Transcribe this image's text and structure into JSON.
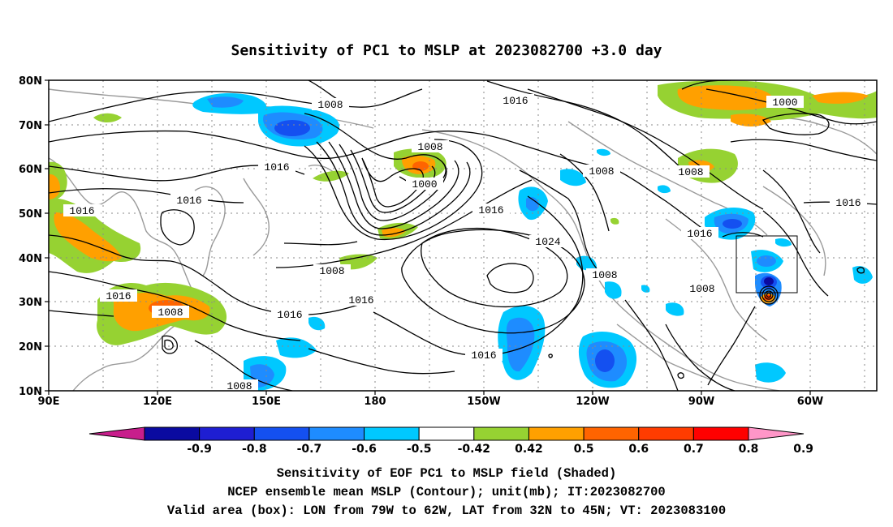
{
  "title": "Sensitivity of PC1 to MSLP at 2023082700 +3.0 day",
  "lat_ticks": [
    "80N",
    "70N",
    "60N",
    "50N",
    "40N",
    "30N",
    "20N",
    "10N"
  ],
  "lon_ticks": [
    "90E",
    "120E",
    "150E",
    "180",
    "150W",
    "120W",
    "90W",
    "60W"
  ],
  "contour_labels": [
    "1008",
    "1016",
    "1000",
    "1008",
    "1016",
    "1008",
    "1016",
    "1008",
    "1016",
    "1016",
    "1016",
    "1000",
    "1024",
    "1016",
    "1016",
    "1008",
    "1008",
    "1016",
    "1016",
    "1008",
    "1008"
  ],
  "colorbar": {
    "labels": [
      "-0.9",
      "-0.8",
      "-0.7",
      "-0.6",
      "-0.5",
      "-0.42",
      "0.42",
      "0.5",
      "0.6",
      "0.7",
      "0.8",
      "0.9"
    ],
    "colors": [
      "#c81e8c",
      "#0a0aa0",
      "#1e1ed2",
      "#1450f0",
      "#1e8cff",
      "#00c8ff",
      "#ffffff",
      "#96d232",
      "#ffa000",
      "#ff6400",
      "#ff3c00",
      "#ff0000",
      "#ff96c8"
    ]
  },
  "captions": {
    "line1": "Sensitivity of EOF PC1 to MSLP field (Shaded)",
    "line2": "NCEP ensemble mean MSLP (Contour); unit(mb); IT:2023082700",
    "line3": "Valid area (box): LON from 79W to 62W, LAT from 32N to 45N; VT: 2023083100"
  }
}
